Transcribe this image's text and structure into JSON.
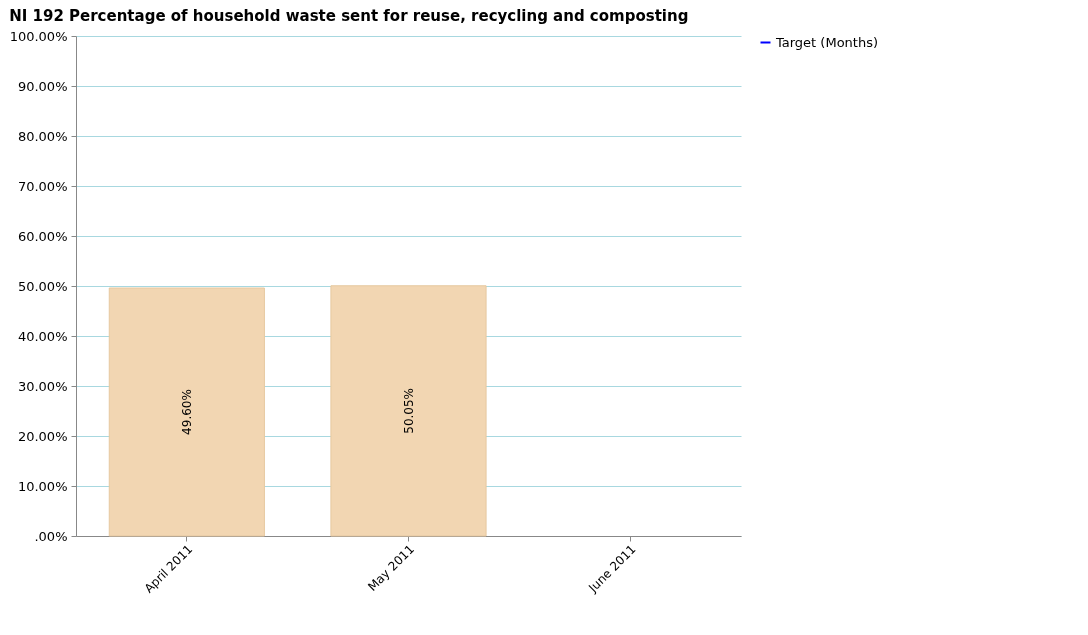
{
  "chart_data": {
    "type": "bar",
    "title": "NI 192 Percentage of household waste sent for reuse, recycling and composting",
    "categories": [
      "April 2011",
      "May 2011",
      "June 2011"
    ],
    "series": [
      {
        "color": "#f2d6b2",
        "values": [
          49.6,
          50.05,
          null
        ],
        "value_labels": [
          "49.60%",
          "50.05%",
          null
        ]
      },
      {
        "name": "Target (Months)",
        "type": "line",
        "color": "#0000ff",
        "values": [
          null,
          null,
          null
        ]
      }
    ],
    "ylim": [
      0,
      100
    ],
    "yticks": [
      {
        "value": 0,
        "label": ".00%"
      },
      {
        "value": 10,
        "label": "10.00%"
      },
      {
        "value": 20,
        "label": "20.00%"
      },
      {
        "value": 30,
        "label": "30.00%"
      },
      {
        "value": 40,
        "label": "40.00%"
      },
      {
        "value": 50,
        "label": "50.00%"
      },
      {
        "value": 60,
        "label": "60.00%"
      },
      {
        "value": 70,
        "label": "70.00%"
      },
      {
        "value": 80,
        "label": "80.00%"
      },
      {
        "value": 90,
        "label": "90.00%"
      },
      {
        "value": 100,
        "label": "100.00%"
      }
    ],
    "grid": "y",
    "legend": "right"
  }
}
